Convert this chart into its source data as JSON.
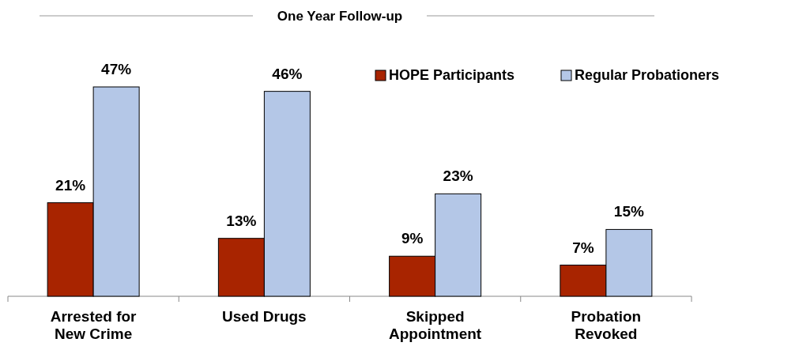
{
  "chart_data": {
    "type": "bar",
    "title": "One Year Follow-up",
    "categories": [
      "Arrested for New Crime",
      "Used Drugs",
      "Skipped Appointment",
      "Probation Revoked"
    ],
    "series": [
      {
        "name": "HOPE Participants",
        "color": "#a82400",
        "values": [
          21,
          13,
          9,
          7
        ],
        "value_labels": [
          "21%",
          "13%",
          "9%",
          "7%"
        ]
      },
      {
        "name": "Regular Probationers",
        "color": "#b4c7e7",
        "values": [
          47,
          46,
          23,
          15
        ],
        "value_labels": [
          "47%",
          "46%",
          "23%",
          "15%"
        ]
      }
    ],
    "legend": "top right"
  }
}
